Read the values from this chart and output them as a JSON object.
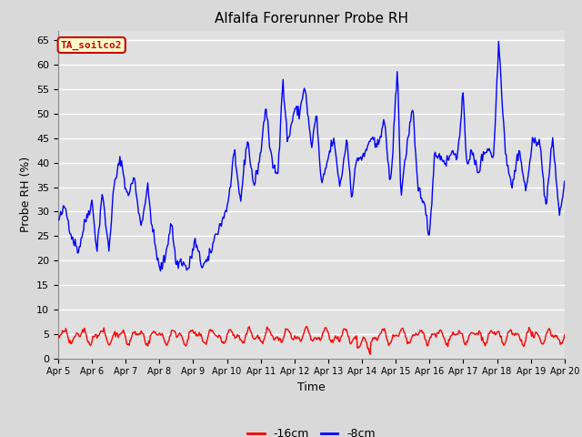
{
  "title": "Alfalfa Forerunner Probe RH",
  "ylabel": "Probe RH (%)",
  "xlabel": "Time",
  "ylim": [
    0,
    67
  ],
  "yticks": [
    0,
    5,
    10,
    15,
    20,
    25,
    30,
    35,
    40,
    45,
    50,
    55,
    60,
    65
  ],
  "background_color": "#d9d9d9",
  "plot_bg_color": "#e0e0e0",
  "grid_color": "#ffffff",
  "annotation_text": "TA_soilco2",
  "annotation_bg": "#ffffcc",
  "annotation_border": "#cc0000",
  "legend_entries": [
    "-16cm",
    "-8cm"
  ],
  "legend_colors": [
    "#ff0000",
    "#0000ff"
  ],
  "red_line_color": "#ff0000",
  "blue_line_color": "#0000ff",
  "title_fontsize": 11,
  "axis_label_fontsize": 9,
  "tick_fontsize": 8,
  "x_start": 5,
  "x_end": 20,
  "xtick_labels": [
    "Apr 5",
    "Apr 6",
    "Apr 7",
    "Apr 8",
    "Apr 9",
    "Apr 10",
    "Apr 11",
    "Apr 12",
    "Apr 13",
    "Apr 14",
    "Apr 15",
    "Apr 16",
    "Apr 17",
    "Apr 18",
    "Apr 19",
    "Apr 20"
  ],
  "xtick_positions": [
    5,
    6,
    7,
    8,
    9,
    10,
    11,
    12,
    13,
    14,
    15,
    16,
    17,
    18,
    19,
    20
  ],
  "blue_control_x": [
    5.0,
    5.2,
    5.4,
    5.6,
    5.8,
    6.0,
    6.15,
    6.3,
    6.5,
    6.65,
    6.85,
    7.05,
    7.25,
    7.45,
    7.65,
    7.8,
    8.0,
    8.15,
    8.35,
    8.5,
    8.65,
    8.85,
    9.05,
    9.25,
    9.45,
    9.65,
    9.85,
    10.05,
    10.2,
    10.4,
    10.6,
    10.8,
    11.0,
    11.15,
    11.3,
    11.5,
    11.65,
    11.8,
    12.0,
    12.15,
    12.3,
    12.5,
    12.65,
    12.8,
    13.0,
    13.15,
    13.35,
    13.55,
    13.7,
    13.85,
    14.05,
    14.25,
    14.45,
    14.65,
    14.85,
    15.05,
    15.15,
    15.3,
    15.5,
    15.65,
    15.8,
    16.0,
    16.15,
    16.35,
    16.5,
    16.65,
    16.85,
    17.0,
    17.1,
    17.25,
    17.45,
    17.6,
    17.75,
    17.9,
    18.05,
    18.25,
    18.45,
    18.65,
    18.85,
    19.05,
    19.25,
    19.45,
    19.65,
    19.85,
    20.0
  ],
  "blue_control_y": [
    28,
    31,
    25,
    22,
    28,
    32,
    22,
    34,
    22,
    35,
    41,
    33,
    37,
    27,
    35,
    26,
    18,
    20,
    28,
    19,
    20,
    18,
    24,
    19,
    20,
    25,
    28,
    32,
    42,
    32,
    45,
    35,
    42,
    52,
    41,
    37,
    57,
    44,
    51,
    50,
    56,
    43,
    50,
    35,
    41,
    45,
    35,
    45,
    33,
    41,
    41,
    45,
    43,
    49,
    35,
    60,
    33,
    42,
    51,
    35,
    33,
    25,
    42,
    41,
    40,
    42,
    42,
    54,
    40,
    42,
    38,
    42,
    43,
    41,
    65,
    42,
    35,
    43,
    34,
    44,
    45,
    31,
    45,
    29,
    36
  ],
  "red_amplitude1": 1.0,
  "red_amplitude2": 0.7,
  "red_freq1": 1.8,
  "red_freq2": 3.5,
  "red_base": 4.5
}
